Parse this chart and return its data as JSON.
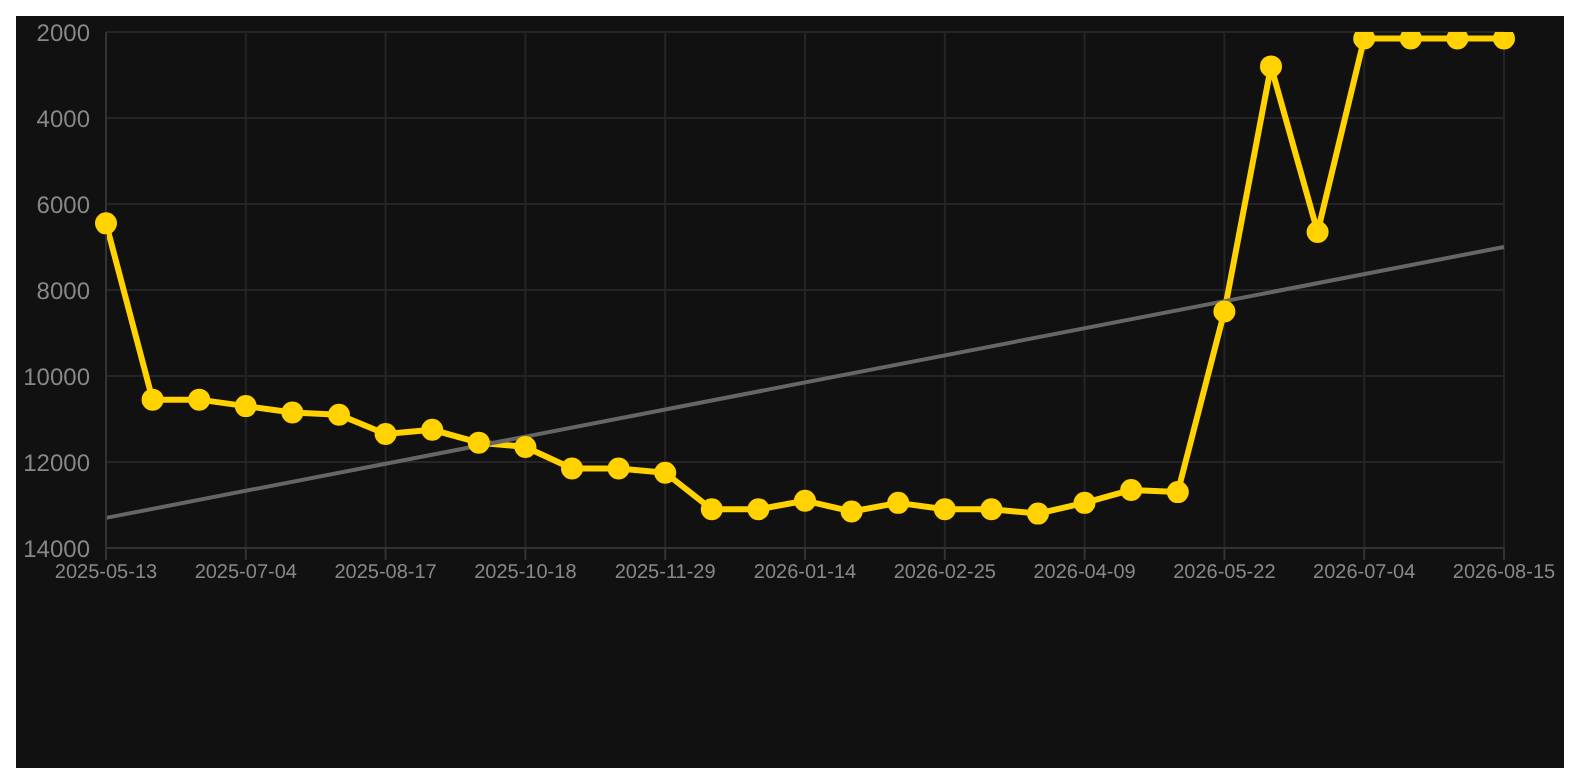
{
  "chart_data": {
    "type": "line",
    "categories": [
      "2025-05-13",
      null,
      null,
      "2025-07-04",
      null,
      null,
      "2025-08-17",
      null,
      null,
      "2025-10-18",
      null,
      null,
      "2025-11-29",
      null,
      null,
      "2026-01-14",
      null,
      null,
      "2026-02-25",
      null,
      null,
      "2026-04-09",
      null,
      null,
      "2026-05-22",
      null,
      null,
      "2026-07-04",
      null,
      null,
      "2026-08-15"
    ],
    "series": [
      {
        "color": "#ffd200",
        "marker": "circle",
        "values": [
          6450,
          10550,
          10550,
          10700,
          10850,
          10900,
          11350,
          11250,
          11550,
          11650,
          12150,
          12150,
          12250,
          13100,
          13100,
          12900,
          13150,
          12950,
          13100,
          13100,
          13200,
          12950,
          12650,
          12700,
          8500,
          2800,
          6650,
          2150,
          2150,
          2150,
          2150
        ]
      },
      {
        "type": "line",
        "color": "#666666",
        "marker": "none",
        "values": [
          13300,
          null,
          null,
          null,
          null,
          null,
          null,
          null,
          null,
          null,
          null,
          null,
          null,
          null,
          null,
          null,
          null,
          null,
          null,
          null,
          null,
          null,
          null,
          null,
          null,
          null,
          null,
          null,
          null,
          null,
          7000
        ]
      }
    ],
    "ylim": [
      14000,
      2000
    ],
    "yticks": [
      2000,
      4000,
      6000,
      8000,
      10000,
      12000,
      14000
    ],
    "grid": true,
    "legend": false
  }
}
